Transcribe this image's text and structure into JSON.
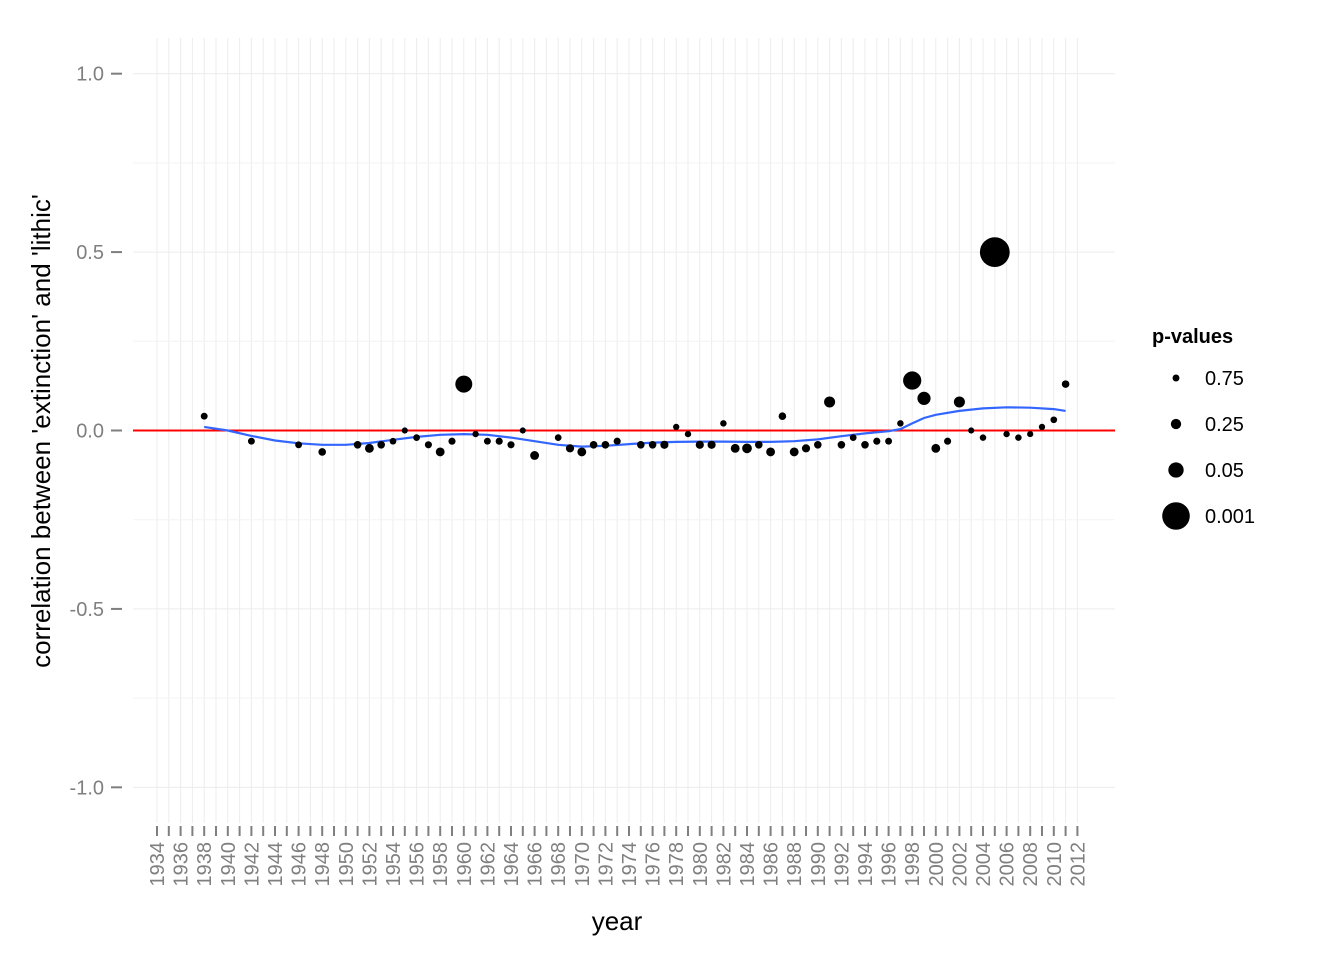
{
  "chart_data": {
    "type": "scatter",
    "title": "",
    "xlabel": "year",
    "ylabel": "correlation between 'extinction' and 'lithic'",
    "ylim": [
      -1.1,
      1.1
    ],
    "y_ticks": [
      -1.0,
      -0.5,
      0.0,
      0.5,
      1.0
    ],
    "y_tick_labels": [
      "-1.0",
      "-0.5",
      "0.0",
      "0.5",
      "1.0"
    ],
    "years": [
      1934,
      1935,
      1936,
      1937,
      1938,
      1939,
      1940,
      1941,
      1942,
      1943,
      1944,
      1945,
      1946,
      1947,
      1948,
      1949,
      1950,
      1951,
      1952,
      1953,
      1954,
      1955,
      1956,
      1957,
      1958,
      1959,
      1960,
      1961,
      1962,
      1963,
      1964,
      1965,
      1966,
      1967,
      1968,
      1969,
      1970,
      1971,
      1972,
      1973,
      1974,
      1975,
      1976,
      1977,
      1978,
      1979,
      1980,
      1981,
      1982,
      1983,
      1984,
      1985,
      1986,
      1987,
      1988,
      1989,
      1990,
      1991,
      1992,
      1993,
      1994,
      1995,
      1996,
      1997,
      1998,
      1999,
      2000,
      2001,
      2002,
      2003,
      2004,
      2005,
      2006,
      2007,
      2008,
      2009,
      2010,
      2011,
      2012
    ],
    "x_tick_labels": [
      "1934",
      "1936",
      "1938",
      "1940",
      "1942",
      "1944",
      "1946",
      "1948",
      "1950",
      "1952",
      "1954",
      "1956",
      "1958",
      "1960",
      "1962",
      "1964",
      "1966",
      "1968",
      "1970",
      "1972",
      "1974",
      "1976",
      "1978",
      "1980",
      "1982",
      "1984",
      "1986",
      "1988",
      "1990",
      "1992",
      "1994",
      "1996",
      "1998",
      "2000",
      "2002",
      "2004",
      "2006",
      "2008",
      "2010",
      "2012"
    ],
    "zero_line_color": "#ff0000",
    "smooth_color": "#3366ff",
    "point_color": "#000000",
    "grid": true,
    "legend": {
      "title": "p-values",
      "position": "right",
      "entries": [
        {
          "label": "0.75",
          "p": 0.75
        },
        {
          "label": "0.25",
          "p": 0.25
        },
        {
          "label": "0.05",
          "p": 0.05
        },
        {
          "label": "0.001",
          "p": 0.001
        }
      ]
    },
    "points": [
      {
        "x": 1938,
        "y": 0.04,
        "p": 0.75
      },
      {
        "x": 1942,
        "y": -0.03,
        "p": 0.75
      },
      {
        "x": 1946,
        "y": -0.04,
        "p": 0.75
      },
      {
        "x": 1948,
        "y": -0.06,
        "p": 0.6
      },
      {
        "x": 1951,
        "y": -0.04,
        "p": 0.6
      },
      {
        "x": 1952,
        "y": -0.05,
        "p": 0.4
      },
      {
        "x": 1953,
        "y": -0.04,
        "p": 0.6
      },
      {
        "x": 1954,
        "y": -0.03,
        "p": 0.8
      },
      {
        "x": 1955,
        "y": 0.0,
        "p": 0.95
      },
      {
        "x": 1956,
        "y": -0.02,
        "p": 0.8
      },
      {
        "x": 1957,
        "y": -0.04,
        "p": 0.7
      },
      {
        "x": 1958,
        "y": -0.06,
        "p": 0.4
      },
      {
        "x": 1959,
        "y": -0.03,
        "p": 0.7
      },
      {
        "x": 1960,
        "y": 0.13,
        "p": 0.03
      },
      {
        "x": 1961,
        "y": -0.01,
        "p": 0.9
      },
      {
        "x": 1962,
        "y": -0.03,
        "p": 0.75
      },
      {
        "x": 1963,
        "y": -0.03,
        "p": 0.7
      },
      {
        "x": 1964,
        "y": -0.04,
        "p": 0.7
      },
      {
        "x": 1965,
        "y": 0.0,
        "p": 0.95
      },
      {
        "x": 1966,
        "y": -0.07,
        "p": 0.4
      },
      {
        "x": 1968,
        "y": -0.02,
        "p": 0.8
      },
      {
        "x": 1969,
        "y": -0.05,
        "p": 0.5
      },
      {
        "x": 1970,
        "y": -0.06,
        "p": 0.4
      },
      {
        "x": 1971,
        "y": -0.04,
        "p": 0.6
      },
      {
        "x": 1972,
        "y": -0.04,
        "p": 0.6
      },
      {
        "x": 1973,
        "y": -0.03,
        "p": 0.7
      },
      {
        "x": 1975,
        "y": -0.04,
        "p": 0.6
      },
      {
        "x": 1976,
        "y": -0.04,
        "p": 0.6
      },
      {
        "x": 1977,
        "y": -0.04,
        "p": 0.5
      },
      {
        "x": 1978,
        "y": 0.01,
        "p": 0.9
      },
      {
        "x": 1979,
        "y": -0.01,
        "p": 0.9
      },
      {
        "x": 1980,
        "y": -0.04,
        "p": 0.5
      },
      {
        "x": 1981,
        "y": -0.04,
        "p": 0.5
      },
      {
        "x": 1982,
        "y": 0.02,
        "p": 0.85
      },
      {
        "x": 1983,
        "y": -0.05,
        "p": 0.4
      },
      {
        "x": 1984,
        "y": -0.05,
        "p": 0.3
      },
      {
        "x": 1985,
        "y": -0.04,
        "p": 0.6
      },
      {
        "x": 1986,
        "y": -0.06,
        "p": 0.4
      },
      {
        "x": 1987,
        "y": 0.04,
        "p": 0.6
      },
      {
        "x": 1988,
        "y": -0.06,
        "p": 0.4
      },
      {
        "x": 1989,
        "y": -0.05,
        "p": 0.5
      },
      {
        "x": 1990,
        "y": -0.04,
        "p": 0.6
      },
      {
        "x": 1991,
        "y": 0.08,
        "p": 0.2
      },
      {
        "x": 1992,
        "y": -0.04,
        "p": 0.6
      },
      {
        "x": 1993,
        "y": -0.02,
        "p": 0.8
      },
      {
        "x": 1994,
        "y": -0.04,
        "p": 0.6
      },
      {
        "x": 1995,
        "y": -0.03,
        "p": 0.7
      },
      {
        "x": 1996,
        "y": -0.03,
        "p": 0.75
      },
      {
        "x": 1997,
        "y": 0.02,
        "p": 0.85
      },
      {
        "x": 1998,
        "y": 0.14,
        "p": 0.02
      },
      {
        "x": 1999,
        "y": 0.09,
        "p": 0.1
      },
      {
        "x": 2000,
        "y": -0.05,
        "p": 0.4
      },
      {
        "x": 2001,
        "y": -0.03,
        "p": 0.7
      },
      {
        "x": 2002,
        "y": 0.08,
        "p": 0.2
      },
      {
        "x": 2003,
        "y": 0.0,
        "p": 0.95
      },
      {
        "x": 2004,
        "y": -0.02,
        "p": 0.85
      },
      {
        "x": 2005,
        "y": 0.5,
        "p": 0.0005
      },
      {
        "x": 2006,
        "y": -0.01,
        "p": 0.9
      },
      {
        "x": 2007,
        "y": -0.02,
        "p": 0.85
      },
      {
        "x": 2008,
        "y": -0.01,
        "p": 0.95
      },
      {
        "x": 2009,
        "y": 0.01,
        "p": 0.9
      },
      {
        "x": 2010,
        "y": 0.03,
        "p": 0.8
      },
      {
        "x": 2011,
        "y": 0.13,
        "p": 0.6
      }
    ],
    "smooth": [
      {
        "x": 1938,
        "y": 0.01
      },
      {
        "x": 1940,
        "y": 0.0
      },
      {
        "x": 1942,
        "y": -0.015
      },
      {
        "x": 1944,
        "y": -0.028
      },
      {
        "x": 1946,
        "y": -0.036
      },
      {
        "x": 1948,
        "y": -0.04
      },
      {
        "x": 1950,
        "y": -0.04
      },
      {
        "x": 1952,
        "y": -0.035
      },
      {
        "x": 1954,
        "y": -0.026
      },
      {
        "x": 1956,
        "y": -0.018
      },
      {
        "x": 1958,
        "y": -0.012
      },
      {
        "x": 1960,
        "y": -0.01
      },
      {
        "x": 1962,
        "y": -0.012
      },
      {
        "x": 1964,
        "y": -0.02
      },
      {
        "x": 1966,
        "y": -0.03
      },
      {
        "x": 1968,
        "y": -0.04
      },
      {
        "x": 1970,
        "y": -0.045
      },
      {
        "x": 1972,
        "y": -0.043
      },
      {
        "x": 1974,
        "y": -0.038
      },
      {
        "x": 1976,
        "y": -0.034
      },
      {
        "x": 1978,
        "y": -0.032
      },
      {
        "x": 1980,
        "y": -0.031
      },
      {
        "x": 1982,
        "y": -0.031
      },
      {
        "x": 1984,
        "y": -0.032
      },
      {
        "x": 1986,
        "y": -0.032
      },
      {
        "x": 1988,
        "y": -0.03
      },
      {
        "x": 1990,
        "y": -0.025
      },
      {
        "x": 1992,
        "y": -0.016
      },
      {
        "x": 1994,
        "y": -0.008
      },
      {
        "x": 1996,
        "y": -0.002
      },
      {
        "x": 1997,
        "y": 0.004
      },
      {
        "x": 1998,
        "y": 0.02
      },
      {
        "x": 1999,
        "y": 0.035
      },
      {
        "x": 2000,
        "y": 0.044
      },
      {
        "x": 2002,
        "y": 0.055
      },
      {
        "x": 2004,
        "y": 0.062
      },
      {
        "x": 2006,
        "y": 0.065
      },
      {
        "x": 2008,
        "y": 0.064
      },
      {
        "x": 2010,
        "y": 0.06
      },
      {
        "x": 2011,
        "y": 0.055
      }
    ]
  }
}
